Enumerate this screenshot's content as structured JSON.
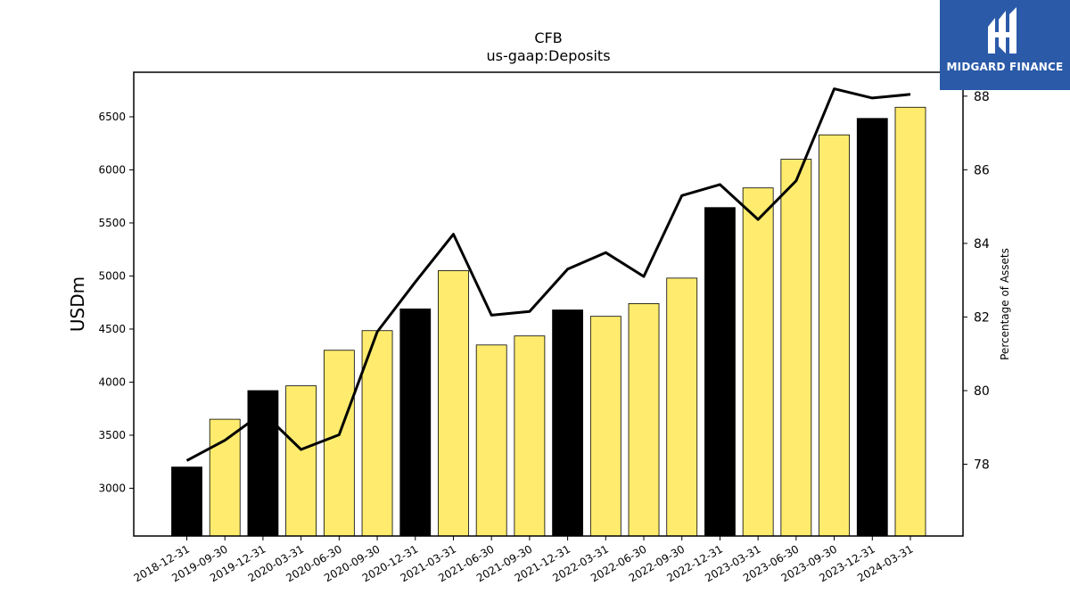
{
  "chart_data": {
    "type": "bar",
    "title": "CFB",
    "subtitle": "us-gaap:Deposits",
    "ylabel": "USDm",
    "y2label": "Percentage of Assets",
    "categories": [
      "2018-12-31",
      "2019-09-30",
      "2019-12-31",
      "2020-03-31",
      "2020-06-30",
      "2020-09-30",
      "2020-12-31",
      "2021-03-31",
      "2021-06-30",
      "2021-09-30",
      "2021-12-31",
      "2022-03-31",
      "2022-06-30",
      "2022-09-30",
      "2022-12-31",
      "2023-03-31",
      "2023-06-30",
      "2023-09-30",
      "2023-12-31",
      "2024-03-31"
    ],
    "values": [
      3200,
      3650,
      3920,
      3965,
      4300,
      4485,
      4690,
      5050,
      4350,
      4435,
      4680,
      4620,
      4740,
      4980,
      5645,
      5830,
      6100,
      6330,
      6485,
      6590
    ],
    "line_series": {
      "name": "",
      "axis": "right",
      "values": [
        78.1,
        78.65,
        79.4,
        78.4,
        78.8,
        81.6,
        82.95,
        84.25,
        82.05,
        82.15,
        83.3,
        83.75,
        83.1,
        85.3,
        85.6,
        84.65,
        85.7,
        88.2,
        87.95,
        88.05
      ]
    },
    "bar_colors": [
      "#000000",
      "#ffec6e",
      "#000000",
      "#ffec6e",
      "#ffec6e",
      "#ffec6e",
      "#000000",
      "#ffec6e",
      "#ffec6e",
      "#ffec6e",
      "#000000",
      "#ffec6e",
      "#ffec6e",
      "#ffec6e",
      "#000000",
      "#ffec6e",
      "#ffec6e",
      "#ffec6e",
      "#000000",
      "#ffec6e"
    ],
    "ylim": [
      2550,
      6920
    ],
    "y2lim": [
      76.05,
      88.65
    ],
    "yticks": [
      3000,
      3500,
      4000,
      4500,
      5000,
      5500,
      6000,
      6500
    ],
    "y2ticks": [
      78,
      80,
      82,
      84,
      86,
      88
    ],
    "grid": false,
    "legend": "none"
  },
  "logo": {
    "text": "MIDGARD FINANCE",
    "icon": "midgard-logo-icon",
    "background": "#2b5aa8"
  }
}
